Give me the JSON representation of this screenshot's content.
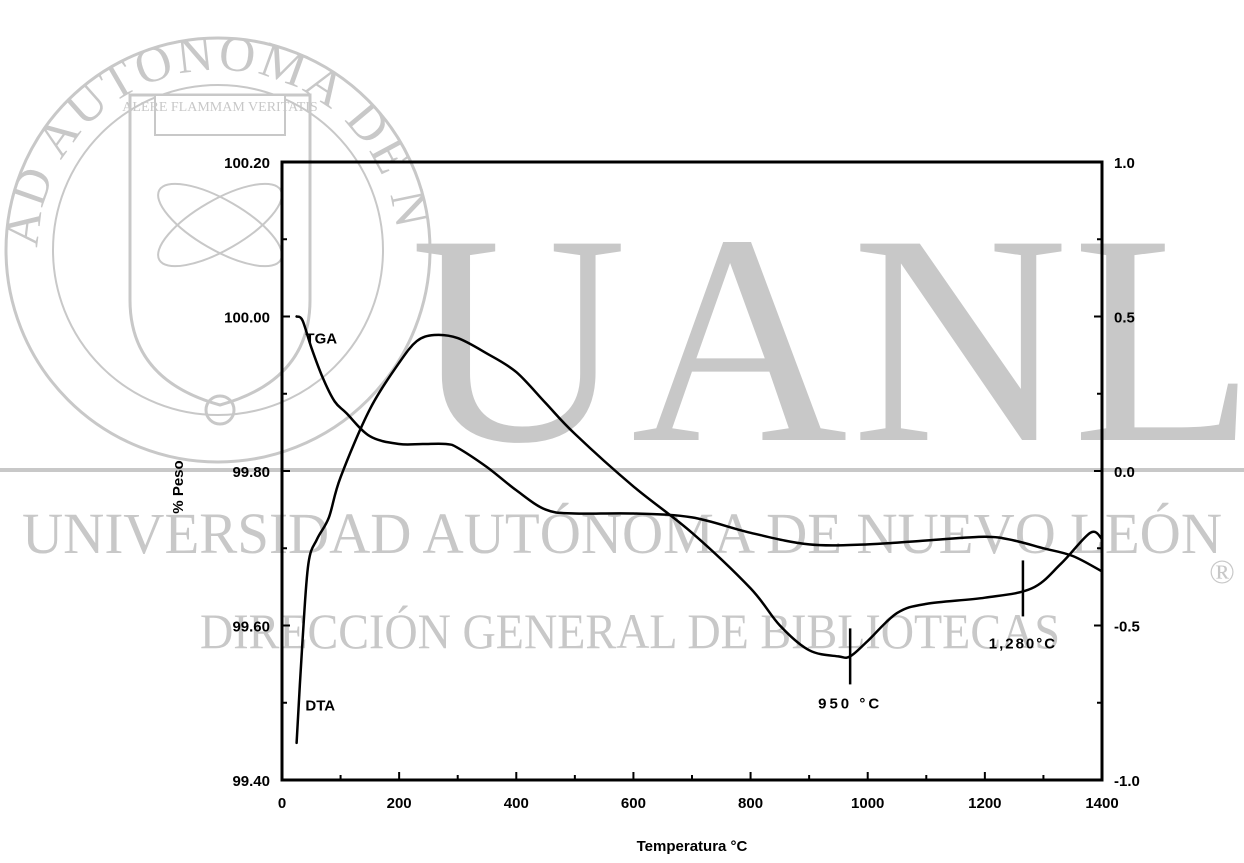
{
  "watermark": {
    "seal_text": "UNIVERSIDAD AUTONOMA DE NUEVO LEON",
    "motto": "ALERE FLAMMAM VERITATIS",
    "big_letters": "UANL",
    "line1": "UNIVERSIDAD AUTÓNOMA DE NUEVO LEÓN",
    "line2": "DIRECCIÓN GENERAL DE BIBLIOTECAS",
    "registered": "®",
    "color": "#c8c8c8"
  },
  "chart_data": {
    "type": "line",
    "title": "",
    "xlabel": "Temperatura °C",
    "ylabel_left": "% Peso",
    "ylabel_right": "",
    "xlim": [
      0,
      1400
    ],
    "ylim_left": [
      99.4,
      100.2
    ],
    "ylim_right": [
      -1.0,
      1.0
    ],
    "x_tick_labels": [
      "0",
      "200",
      "400",
      "600",
      "800",
      "1000",
      "1200",
      "1400"
    ],
    "y_left_tick_labels": [
      "99.40",
      "99.60",
      "99.80",
      "100.00",
      "100.20"
    ],
    "y_right_tick_labels": [
      "-1.0",
      "-0.5",
      "0.0",
      "0.5",
      "1.0"
    ],
    "grid": false,
    "series": [
      {
        "name": "TGA",
        "axis": "left",
        "color": "#000000",
        "x": [
          25,
          35,
          50,
          70,
          90,
          110,
          150,
          200,
          240,
          280,
          300,
          350,
          400,
          450,
          500,
          600,
          700,
          800,
          900,
          1000,
          1100,
          1200,
          1250,
          1300,
          1350,
          1400
        ],
        "y": [
          100.0,
          99.995,
          99.96,
          99.92,
          99.89,
          99.875,
          99.845,
          99.835,
          99.835,
          99.835,
          99.83,
          99.805,
          99.775,
          99.75,
          99.745,
          99.745,
          99.74,
          99.72,
          99.705,
          99.705,
          99.71,
          99.715,
          99.71,
          99.7,
          99.69,
          99.67
        ]
      },
      {
        "name": "DTA",
        "axis": "right",
        "color": "#000000",
        "x": [
          25,
          35,
          45,
          60,
          80,
          100,
          150,
          200,
          230,
          260,
          300,
          350,
          400,
          450,
          500,
          600,
          700,
          800,
          850,
          900,
          950,
          970,
          1000,
          1050,
          1100,
          1200,
          1280,
          1330,
          1380,
          1400
        ],
        "y": [
          -0.88,
          -0.55,
          -0.3,
          -0.22,
          -0.15,
          -0.02,
          0.2,
          0.35,
          0.42,
          0.44,
          0.43,
          0.38,
          0.32,
          0.22,
          0.12,
          -0.05,
          -0.2,
          -0.38,
          -0.5,
          -0.58,
          -0.6,
          -0.6,
          -0.55,
          -0.46,
          -0.43,
          -0.41,
          -0.38,
          -0.3,
          -0.2,
          -0.22
        ]
      }
    ],
    "annotations": [
      {
        "text": "TGA",
        "series": "TGA"
      },
      {
        "text": "DTA",
        "series": "DTA"
      },
      {
        "text": "950 °C",
        "x": 970,
        "y_right": -0.6
      },
      {
        "text": "1,280°C",
        "x": 1265,
        "y_right": -0.38
      }
    ]
  }
}
